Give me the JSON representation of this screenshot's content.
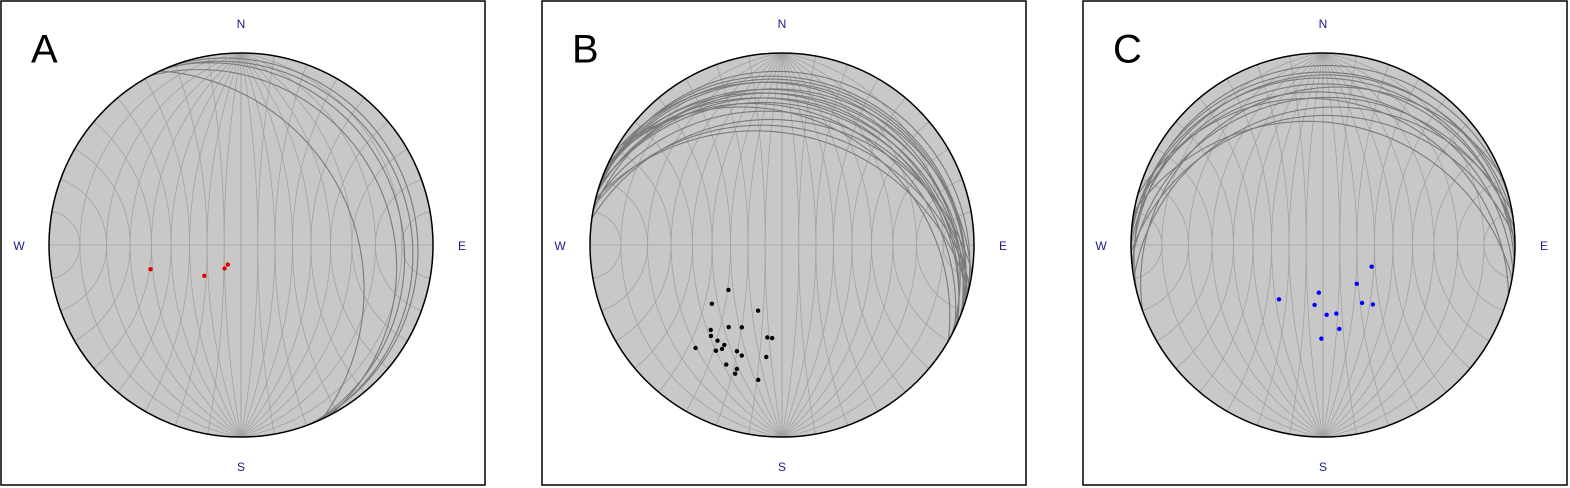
{
  "chart_data": [
    {
      "type": "stereonet",
      "label": "A",
      "north": "N",
      "east": "E",
      "south": "S",
      "west": "W",
      "planes": {
        "color": "#7a7a7a",
        "strike": [
          335,
          332,
          338,
          336,
          340
        ],
        "dip": [
          29,
          14,
          10,
          7,
          5
        ]
      },
      "poles": {
        "color": "#e00000",
        "trend": [
          255,
          230,
          215,
          214
        ],
        "plunge": [
          38,
          62,
          73,
          76
        ]
      }
    },
    {
      "type": "stereonet",
      "label": "B",
      "north": "N",
      "east": "E",
      "south": "S",
      "west": "W",
      "planes": {
        "color": "#7a7a7a",
        "strike": [
          285,
          290,
          280,
          295,
          288,
          283,
          292,
          298,
          278,
          286,
          294,
          282,
          289,
          296,
          284,
          291,
          287,
          300
        ],
        "dip": [
          6,
          9,
          12,
          15,
          18,
          21,
          8,
          11,
          24,
          14,
          17,
          27,
          10,
          20,
          30,
          13,
          16,
          23
        ]
      },
      "poles": {
        "color": "#000000",
        "trend": [
          230,
          230,
          200,
          213,
          206,
          220,
          218,
          214,
          210,
          220,
          212,
          210,
          203,
          200,
          189,
          186,
          188,
          205,
          200,
          200,
          190
        ],
        "plunge": [
          50,
          39,
          50,
          36,
          39,
          30,
          28,
          28,
          28,
          20,
          24,
          26,
          28,
          27,
          38,
          38,
          29,
          21,
          21,
          19,
          19
        ]
      }
    },
    {
      "type": "stereonet",
      "label": "C",
      "north": "N",
      "east": "E",
      "south": "S",
      "west": "W",
      "planes": {
        "color": "#7a7a7a",
        "strike": [
          255,
          262,
          270,
          278,
          285,
          260,
          268,
          275,
          250,
          265,
          280,
          272
        ],
        "dip": [
          4,
          7,
          10,
          13,
          16,
          19,
          22,
          8,
          12,
          15,
          25,
          6
        ]
      },
      "poles": {
        "color": "#0000ff",
        "trend": [
          114,
          139,
          219,
          185,
          188,
          146,
          140,
          177,
          169,
          169,
          181
        ],
        "plunge": [
          59,
          60,
          50,
          62,
          55,
          50,
          46,
          50,
          50,
          42,
          38
        ]
      }
    }
  ]
}
